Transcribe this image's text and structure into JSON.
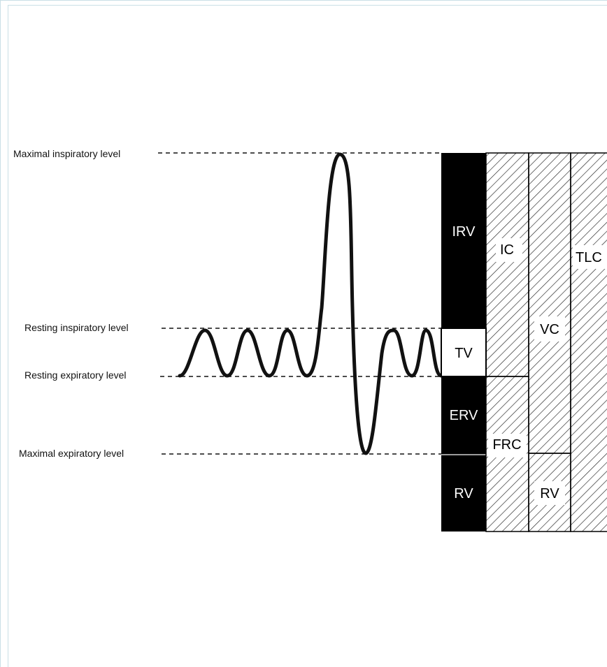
{
  "levels": {
    "maximal_inspiratory": "Maximal inspiratory level",
    "resting_inspiratory": "Resting inspiratory level",
    "resting_expiratory": "Resting expiratory level",
    "maximal_expiratory": "Maximal expiratory level"
  },
  "volumes": {
    "irv": "IRV",
    "tv": "TV",
    "erv": "ERV",
    "rv": "RV"
  },
  "capacities": {
    "ic": "IC",
    "frc": "FRC",
    "vc": "VC",
    "rv": "RV",
    "tlc": "TLC"
  },
  "colors": {
    "volume_fill": "#000000",
    "line": "#111111",
    "hatch": "#222222"
  }
}
